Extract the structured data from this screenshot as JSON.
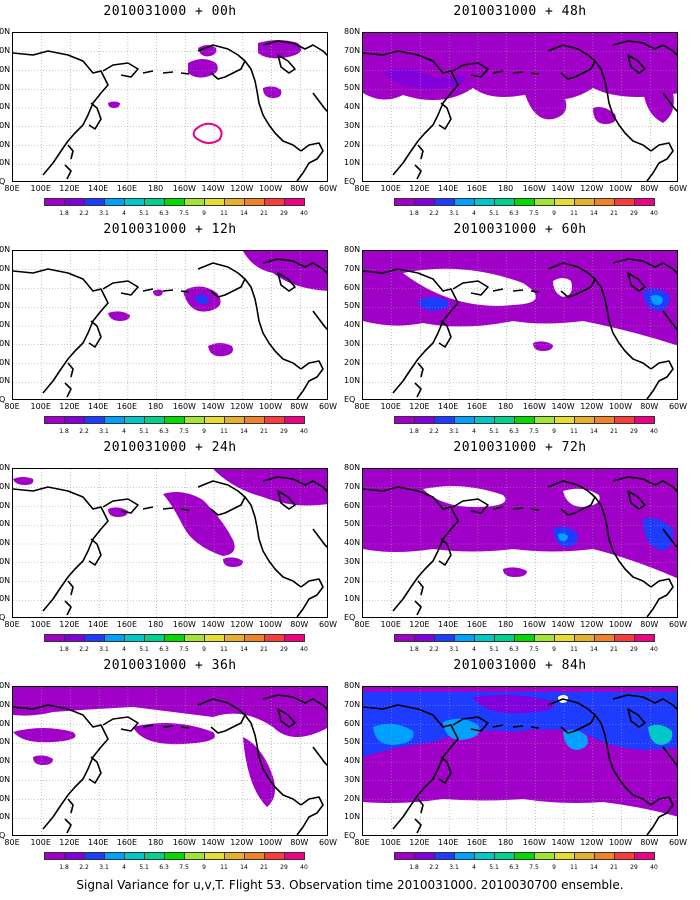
{
  "footer": "Signal Variance for u,v,T. Flight 53. Observation time 2010031000. 2010030700 ensemble.",
  "latitude_labels": [
    "80N",
    "70N",
    "60N",
    "50N",
    "40N",
    "30N",
    "20N",
    "10N",
    "EQ"
  ],
  "longitude_labels": [
    "80E",
    "100E",
    "120E",
    "140E",
    "160E",
    "180",
    "160W",
    "140W",
    "120W",
    "100W",
    "80W",
    "60W"
  ],
  "colorbar": {
    "labels": [
      "1.8",
      "2.2",
      "3.1",
      "4",
      "5.1",
      "6.3",
      "7.5",
      "9",
      "11",
      "14",
      "21",
      "29",
      "40"
    ],
    "colors": [
      "#a000c8",
      "#8200dc",
      "#1e3cff",
      "#00a0ff",
      "#00c8c8",
      "#00d28c",
      "#00dc00",
      "#a0e632",
      "#e6dc32",
      "#e6af2d",
      "#f08228",
      "#fa3c3c",
      "#f00082"
    ]
  },
  "panels": [
    {
      "title": "2010031000 + 00h",
      "lead_hours": 0
    },
    {
      "title": "2010031000 + 48h",
      "lead_hours": 48
    },
    {
      "title": "2010031000 + 12h",
      "lead_hours": 12
    },
    {
      "title": "2010031000 + 60h",
      "lead_hours": 60
    },
    {
      "title": "2010031000 + 24h",
      "lead_hours": 24
    },
    {
      "title": "2010031000 + 72h",
      "lead_hours": 72
    },
    {
      "title": "2010031000 + 36h",
      "lead_hours": 36
    },
    {
      "title": "2010031000 + 84h",
      "lead_hours": 84
    }
  ]
}
